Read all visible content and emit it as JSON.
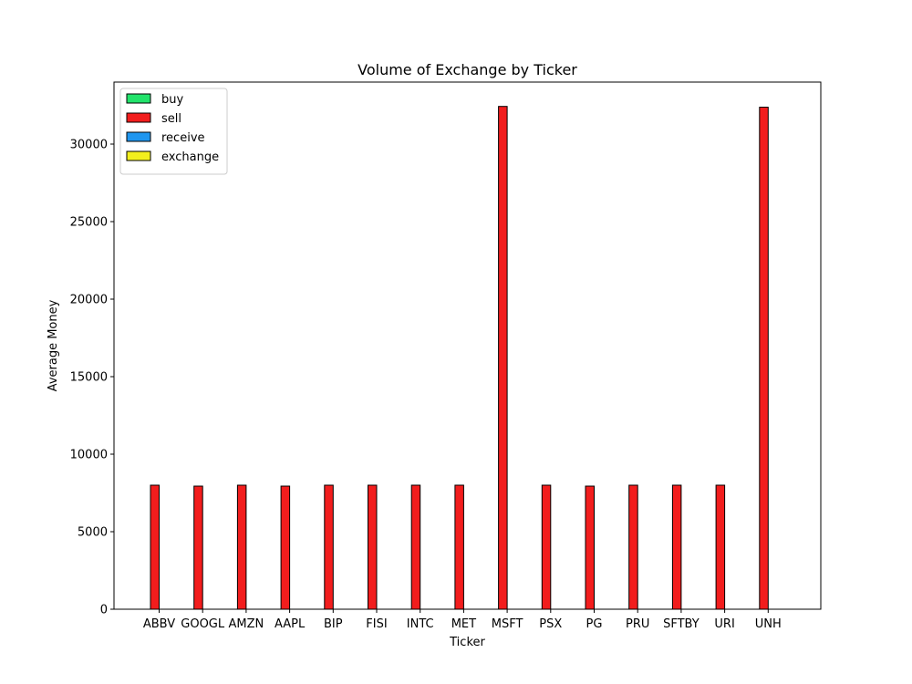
{
  "chart_data": {
    "type": "bar",
    "title": "Volume of Exchange by Ticker",
    "xlabel": "Ticker",
    "ylabel": "Average Money",
    "ylim": [
      0,
      34000
    ],
    "yticks": [
      0,
      5000,
      10000,
      15000,
      20000,
      25000,
      30000
    ],
    "categories": [
      "ABBV",
      "GOOGL",
      "AMZN",
      "AAPL",
      "BIP",
      "FISI",
      "INTC",
      "MET",
      "MSFT",
      "PSX",
      "PG",
      "PRU",
      "SFTBY",
      "URI",
      "UNH"
    ],
    "series": [
      {
        "name": "buy",
        "color": "#22e36b",
        "values": [
          0,
          0,
          0,
          0,
          0,
          0,
          0,
          0,
          0,
          0,
          0,
          0,
          0,
          0,
          0
        ]
      },
      {
        "name": "sell",
        "color": "#f21d1d",
        "values": [
          8000,
          7940,
          8000,
          7940,
          8000,
          8000,
          8000,
          8000,
          32430,
          8000,
          7940,
          8000,
          8000,
          8000,
          32380
        ]
      },
      {
        "name": "receive",
        "color": "#1f96ef",
        "values": [
          0,
          0,
          0,
          0,
          0,
          0,
          0,
          0,
          0,
          0,
          0,
          0,
          0,
          0,
          0
        ]
      },
      {
        "name": "exchange",
        "color": "#f2ef1d",
        "values": [
          0,
          0,
          0,
          0,
          0,
          0,
          0,
          0,
          0,
          0,
          0,
          0,
          0,
          0,
          0
        ]
      }
    ],
    "grid": false,
    "legend_position": "top-left"
  }
}
